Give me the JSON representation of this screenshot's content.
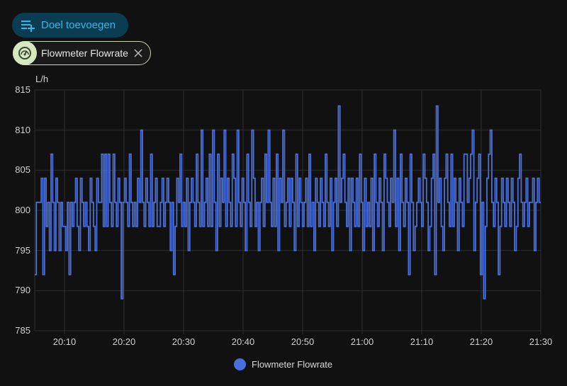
{
  "toolbar": {
    "add_target_label": "Doel toevoegen",
    "add_target_icon": "playlist-plus-icon"
  },
  "target_chip": {
    "label": "Flowmeter Flowrate",
    "icon": "gauge-icon",
    "remove_icon": "close-icon"
  },
  "colors": {
    "background": "#111111",
    "series": "#4a6fdc",
    "grid": "#2e2e2e",
    "button_bg": "#0a3d52",
    "button_fg": "#3ab6e6",
    "chip_icon_bg": "#d6e7c2"
  },
  "chart_data": {
    "type": "line",
    "step": true,
    "title": "",
    "xlabel": "",
    "ylabel": "L/h",
    "ylim": [
      785,
      815
    ],
    "yticks": [
      "815",
      "810",
      "805",
      "800",
      "795",
      "790",
      "785"
    ],
    "xlim_minutes_from_2005": [
      0,
      85
    ],
    "xticks": [
      "20:10",
      "20:20",
      "20:30",
      "20:40",
      "20:50",
      "21:00",
      "21:10",
      "21:20",
      "21:30"
    ],
    "grid": true,
    "legend": {
      "position": "bottom",
      "entries": [
        "Flowmeter Flowrate"
      ]
    },
    "series": [
      {
        "name": "Flowmeter Flowrate",
        "color": "#4a6fdc",
        "values": [
          792,
          801,
          801,
          801,
          804,
          792,
          804,
          798,
          801,
          795,
          807,
          801,
          795,
          804,
          801,
          795,
          801,
          798,
          798,
          795,
          801,
          792,
          801,
          798,
          801,
          804,
          798,
          795,
          804,
          801,
          798,
          801,
          798,
          795,
          804,
          801,
          798,
          795,
          804,
          801,
          801,
          807,
          798,
          807,
          798,
          807,
          801,
          798,
          807,
          801,
          798,
          804,
          801,
          789,
          801,
          804,
          801,
          798,
          807,
          801,
          798,
          801,
          798,
          804,
          801,
          810,
          801,
          798,
          804,
          801,
          798,
          807,
          798,
          801,
          804,
          798,
          798,
          801,
          804,
          798,
          801,
          804,
          801,
          795,
          801,
          792,
          798,
          804,
          801,
          807,
          798,
          801,
          798,
          804,
          795,
          801,
          804,
          801,
          798,
          807,
          801,
          798,
          810,
          798,
          801,
          804,
          798,
          807,
          798,
          810,
          801,
          795,
          807,
          798,
          804,
          801,
          810,
          798,
          804,
          801,
          798,
          807,
          804,
          798,
          810,
          801,
          798,
          804,
          801,
          795,
          807,
          801,
          798,
          810,
          804,
          798,
          801,
          795,
          801,
          804,
          798,
          807,
          801,
          810,
          801,
          798,
          804,
          798,
          807,
          795,
          804,
          801,
          810,
          798,
          801,
          804,
          798,
          804,
          801,
          795,
          807,
          798,
          804,
          801,
          798,
          801,
          804,
          798,
          807,
          798,
          801,
          795,
          804,
          801,
          798,
          804,
          801,
          798,
          807,
          801,
          798,
          804,
          795,
          801,
          804,
          798,
          813,
          801,
          804,
          807,
          801,
          798,
          804,
          795,
          804,
          801,
          798,
          804,
          798,
          807,
          801,
          795,
          804,
          798,
          801,
          798,
          804,
          795,
          807,
          801,
          798,
          804,
          801,
          795,
          807,
          804,
          801,
          798,
          804,
          801,
          810,
          798,
          804,
          795,
          807,
          801,
          798,
          804,
          801,
          792,
          807,
          801,
          795,
          798,
          801,
          804,
          801,
          798,
          807,
          804,
          801,
          795,
          798,
          804,
          807,
          792,
          813,
          801,
          804,
          798,
          795,
          804,
          807,
          801,
          798,
          807,
          798,
          804,
          801,
          795,
          804,
          801,
          798,
          807,
          807,
          801,
          804,
          807,
          810,
          795,
          801,
          804,
          807,
          792,
          801,
          789,
          798,
          804,
          807,
          810,
          801,
          798,
          804,
          801,
          792,
          798,
          804,
          801,
          798,
          804,
          801,
          798,
          804,
          801,
          795,
          798,
          804,
          807,
          801,
          798,
          801,
          804,
          798,
          801,
          801,
          804,
          795,
          801,
          804,
          801
        ]
      }
    ]
  },
  "axis": {
    "unit": "L/h",
    "y_labels": [
      "815",
      "810",
      "805",
      "800",
      "795",
      "790",
      "785"
    ],
    "x_labels": [
      "20:10",
      "20:20",
      "20:30",
      "20:40",
      "20:50",
      "21:00",
      "21:10",
      "21:20",
      "21:30"
    ]
  },
  "legend": {
    "label": "Flowmeter Flowrate"
  }
}
